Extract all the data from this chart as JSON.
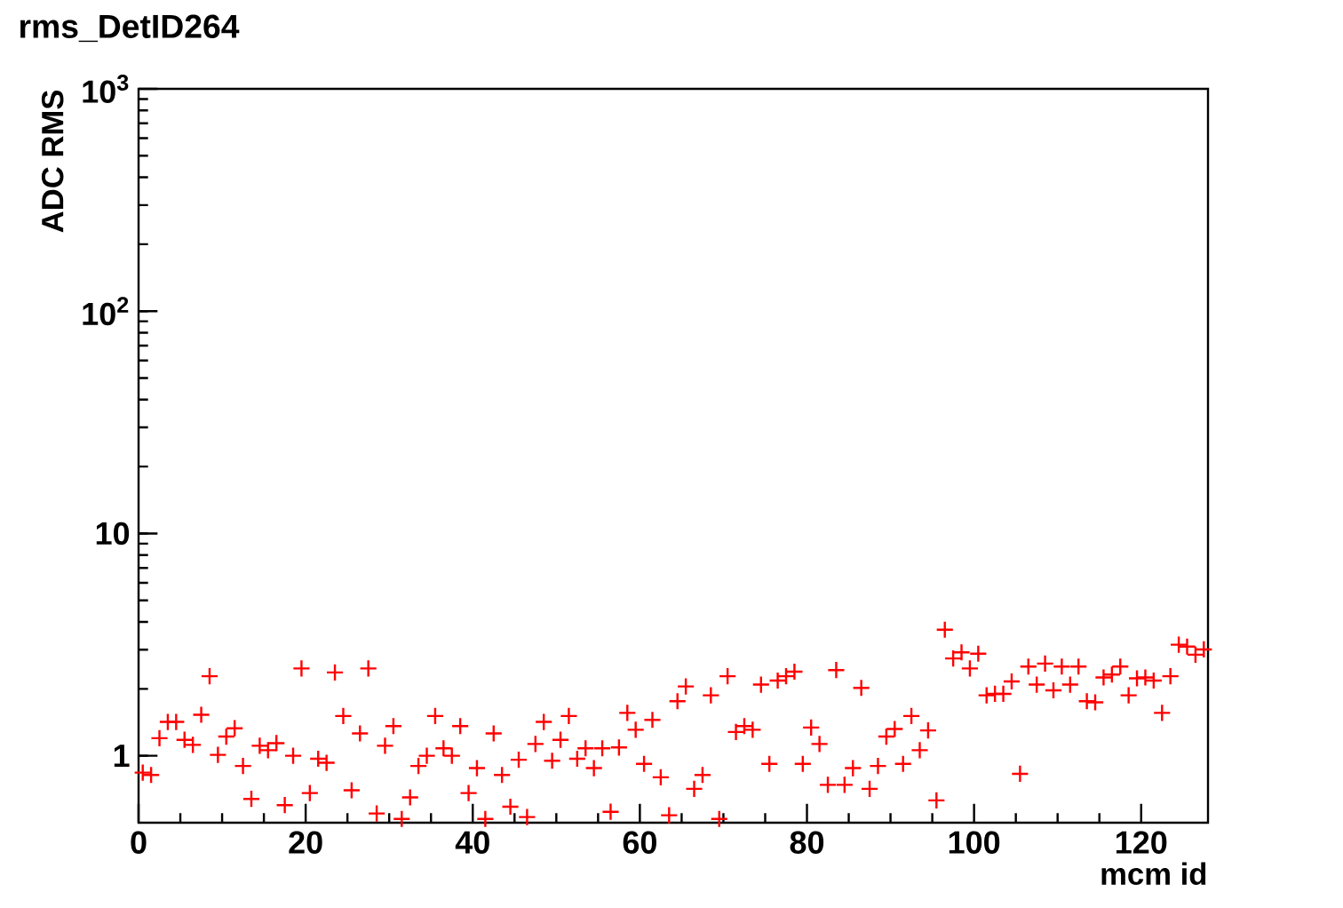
{
  "chart_data": {
    "type": "scatter",
    "title": "rms_DetID264",
    "xlabel": "mcm id",
    "ylabel": "ADC RMS",
    "log": "y",
    "marker": "cross",
    "color": "#ff0000",
    "xlim": [
      0,
      128
    ],
    "ylim": [
      0.5,
      1000
    ],
    "xticks": [
      0,
      20,
      40,
      60,
      80,
      100,
      120
    ],
    "yticks": [
      1,
      10,
      {
        "value": 100,
        "label": "10$^{2}$"
      },
      {
        "value": 1000,
        "label": "10$^{3}$"
      }
    ],
    "x": [
      0.5,
      1.5,
      2.5,
      3.5,
      4.5,
      5.5,
      6.5,
      7.5,
      8.5,
      9.5,
      10.5,
      11.5,
      12.5,
      13.5,
      14.5,
      15.5,
      16.5,
      17.5,
      18.5,
      19.5,
      20.5,
      21.5,
      22.5,
      23.5,
      24.5,
      25.5,
      26.5,
      27.5,
      28.5,
      29.5,
      30.5,
      31.5,
      32.5,
      33.5,
      34.5,
      35.5,
      36.5,
      37.5,
      38.5,
      39.5,
      40.5,
      41.5,
      42.5,
      43.5,
      44.5,
      45.5,
      46.5,
      47.5,
      48.5,
      49.5,
      50.5,
      51.5,
      52.5,
      53.5,
      54.5,
      55.5,
      56.5,
      57.5,
      58.5,
      59.5,
      60.5,
      61.5,
      62.5,
      63.5,
      64.5,
      65.5,
      66.5,
      67.5,
      68.5,
      69.5,
      70.5,
      71.5,
      72.5,
      73.5,
      74.5,
      75.5,
      76.5,
      77.5,
      78.5,
      79.5,
      80.5,
      81.5,
      82.5,
      83.5,
      84.5,
      85.5,
      86.5,
      87.5,
      88.5,
      89.5,
      90.5,
      91.5,
      92.5,
      93.5,
      94.5,
      95.5,
      96.5,
      97.5,
      98.5,
      99.5,
      100.5,
      101.5,
      102.5,
      103.5,
      104.5,
      105.5,
      106.5,
      107.5,
      108.5,
      109.5,
      110.5,
      111.5,
      112.5,
      113.5,
      114.5,
      115.5,
      116.5,
      117.5,
      118.5,
      119.5,
      120.5,
      121.5,
      122.5,
      123.5,
      124.5,
      125.5,
      126.5,
      127.5
    ],
    "values": [
      0.84,
      0.82,
      1.2,
      1.42,
      1.42,
      1.18,
      1.12,
      1.53,
      2.28,
      1.01,
      1.22,
      1.33,
      0.9,
      0.64,
      1.11,
      1.06,
      1.14,
      0.6,
      1.0,
      2.47,
      0.68,
      0.97,
      0.93,
      2.37,
      1.51,
      0.7,
      1.26,
      2.47,
      0.55,
      1.11,
      1.36,
      0.52,
      0.65,
      0.9,
      1.0,
      1.51,
      1.08,
      1.0,
      1.36,
      0.68,
      0.88,
      0.52,
      1.26,
      0.82,
      0.59,
      0.96,
      0.53,
      1.13,
      1.42,
      0.95,
      1.18,
      1.51,
      0.97,
      1.08,
      0.88,
      1.08,
      0.56,
      1.09,
      1.56,
      1.31,
      0.92,
      1.45,
      0.8,
      0.54,
      1.76,
      2.05,
      0.71,
      0.82,
      1.87,
      0.52,
      2.28,
      1.28,
      1.36,
      1.31,
      2.09,
      0.92,
      2.18,
      2.28,
      2.39,
      0.92,
      1.34,
      1.13,
      0.74,
      2.43,
      0.74,
      0.88,
      2.02,
      0.71,
      0.9,
      1.22,
      1.32,
      0.92,
      1.51,
      1.06,
      1.3,
      0.63,
      3.69,
      2.74,
      2.92,
      2.47,
      2.88,
      1.87,
      1.9,
      1.9,
      2.16,
      0.83,
      2.52,
      2.09,
      2.6,
      1.97,
      2.52,
      2.09,
      2.52,
      1.76,
      1.74,
      2.25,
      2.32,
      2.52,
      1.87,
      2.23,
      2.25,
      2.18,
      1.56,
      2.28,
      3.16,
      3.1,
      2.85,
      3.01
    ]
  }
}
